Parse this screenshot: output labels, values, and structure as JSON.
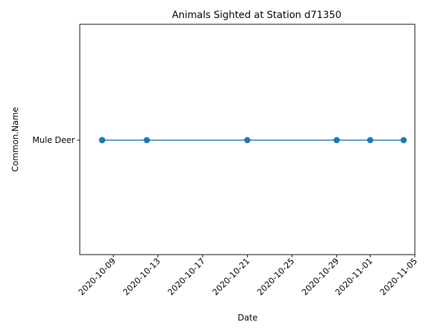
{
  "chart_data": {
    "type": "line",
    "title": "Animals Sighted at Station d71350",
    "xlabel": "Date",
    "ylabel": "Common.Name",
    "categories_y": [
      "Mule Deer"
    ],
    "x_ticks": [
      "2020-10-09",
      "2020-10-13",
      "2020-10-17",
      "2020-10-21",
      "2020-10-25",
      "2020-10-29",
      "2020-11-01",
      "2020-11-05"
    ],
    "series": [
      {
        "x": [
          "2020-10-08",
          "2020-10-08",
          "2020-10-08",
          "2020-10-12",
          "2020-10-21",
          "2020-10-29",
          "2020-11-01",
          "2020-11-04"
        ],
        "y": [
          "Mule Deer",
          "Mule Deer",
          "Mule Deer",
          "Mule Deer",
          "Mule Deer",
          "Mule Deer",
          "Mule Deer",
          "Mule Deer"
        ]
      }
    ],
    "xlim": [
      "2020-10-06",
      "2020-11-05"
    ],
    "grid": false,
    "marker": "circle",
    "color": "#1f77b4"
  }
}
